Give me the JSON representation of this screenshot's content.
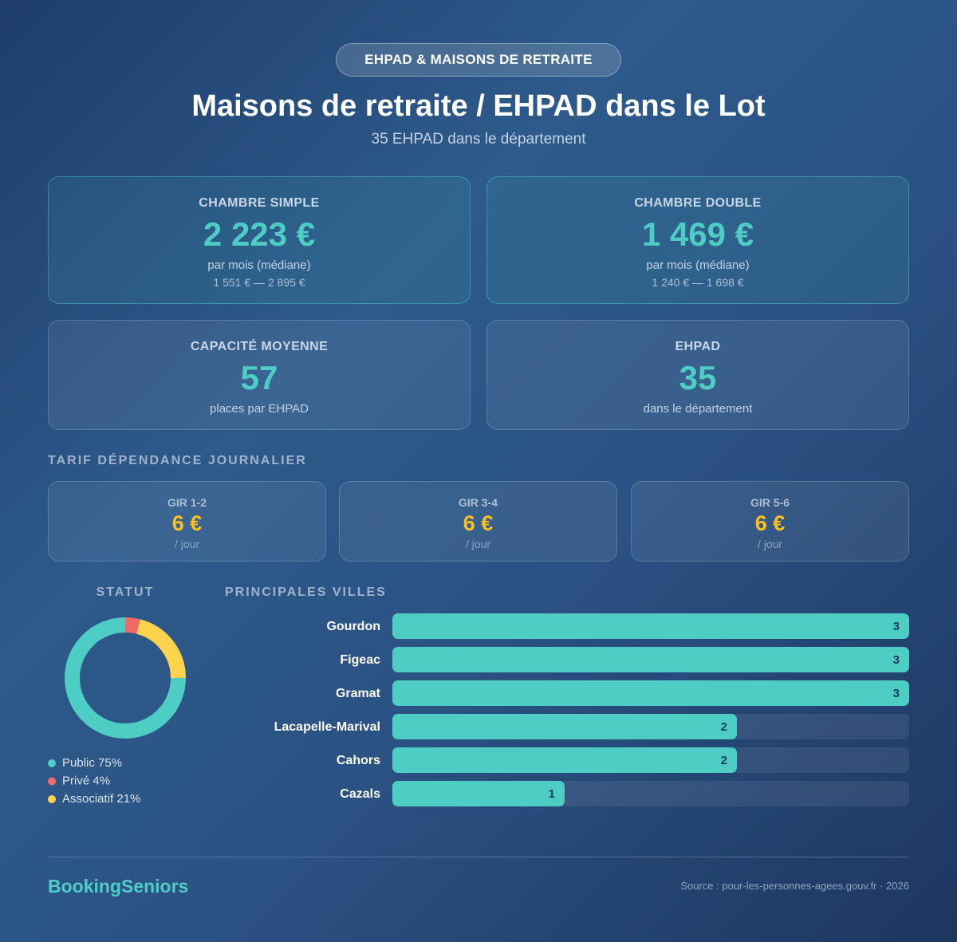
{
  "header": {
    "badge": "EHPAD & MAISONS DE RETRAITE",
    "title": "Maisons de retraite / EHPAD dans le Lot",
    "subtitle": "35 EHPAD dans le département"
  },
  "price_cards": [
    {
      "label": "CHAMBRE SIMPLE",
      "value": "2 223 €",
      "note": "par mois (médiane)",
      "range": "1 551 € — 2 895 €"
    },
    {
      "label": "CHAMBRE DOUBLE",
      "value": "1 469 €",
      "note": "par mois (médiane)",
      "range": "1 240 € — 1 698 €"
    }
  ],
  "stat_cards": [
    {
      "label": "CAPACITÉ MOYENNE",
      "value": "57",
      "note": "places par EHPAD"
    },
    {
      "label": "EHPAD",
      "value": "35",
      "note": "dans le département"
    }
  ],
  "tarif": {
    "title": "TARIF DÉPENDANCE JOURNALIER",
    "items": [
      {
        "label": "GIR 1-2",
        "value": "6 €",
        "unit": "/ jour"
      },
      {
        "label": "GIR 3-4",
        "value": "6 €",
        "unit": "/ jour"
      },
      {
        "label": "GIR 5-6",
        "value": "6 €",
        "unit": "/ jour"
      }
    ]
  },
  "chart_data": [
    {
      "type": "pie",
      "title": "STATUT",
      "donut": true,
      "categories": [
        "Public",
        "Privé",
        "Associatif"
      ],
      "values": [
        75,
        4,
        21
      ],
      "value_labels": [
        "75%",
        "4%",
        "21%"
      ],
      "colors": [
        "#4ecdc4",
        "#f06a6a",
        "#fcd34d"
      ]
    },
    {
      "type": "bar",
      "orientation": "horizontal",
      "title": "PRINCIPALES VILLES",
      "categories": [
        "Gourdon",
        "Figeac",
        "Gramat",
        "Lacapelle-Marival",
        "Cahors",
        "Cazals"
      ],
      "values": [
        3,
        3,
        3,
        2,
        2,
        1
      ],
      "color": "#4ecdc4"
    }
  ],
  "footer": {
    "brand": "BookingSeniors",
    "source": "Source : pour-les-personnes-agees.gouv.fr · 2026"
  }
}
